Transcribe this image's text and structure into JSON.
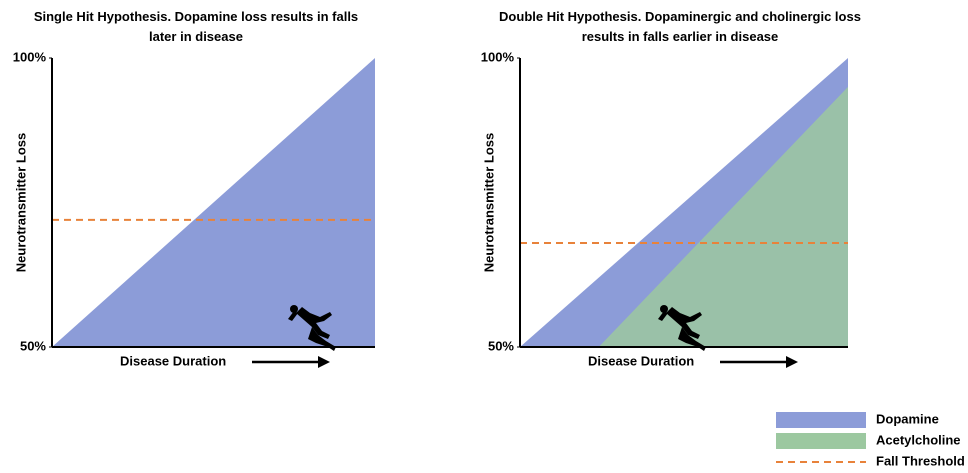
{
  "chart_data": [
    {
      "type": "area",
      "title": "Single Hit Hypothesis. Dopamine loss results in falls later in disease",
      "xlabel": "Disease Duration",
      "ylabel": "Neurotransmitter Loss",
      "x": [
        0,
        100
      ],
      "xlim": [
        0,
        100
      ],
      "ylim": [
        50,
        100
      ],
      "yticks": [
        {
          "value": 50,
          "label": "50%"
        },
        {
          "value": 100,
          "label": "100%"
        }
      ],
      "series": [
        {
          "kind": "area",
          "color": "#8c9cd8",
          "values": [
            50,
            100
          ]
        },
        {
          "kind": "dashed-line",
          "color": "#e8823a",
          "values": [
            72,
            72
          ]
        }
      ]
    },
    {
      "type": "area",
      "title": "Double Hit Hypothesis. Dopaminergic and cholinergic loss results in falls earlier in disease",
      "xlabel": "Disease Duration",
      "ylabel": "Neurotransmitter Loss",
      "x": [
        0,
        24,
        100
      ],
      "xlim": [
        0,
        100
      ],
      "ylim": [
        50,
        100
      ],
      "yticks": [
        {
          "value": 50,
          "label": "50%"
        },
        {
          "value": 100,
          "label": "100%"
        }
      ],
      "legend": "lower right",
      "series": [
        {
          "name": "Dopamine",
          "kind": "area",
          "color": "#8c9cd8",
          "values": [
            50,
            62,
            100
          ]
        },
        {
          "name": "Acetylcholine",
          "kind": "area",
          "color": "#9cc8a0",
          "values": [
            null,
            50,
            95
          ]
        },
        {
          "name": "Fall Threshold",
          "kind": "dashed-line",
          "color": "#e8823a",
          "values": [
            68,
            68,
            68
          ]
        }
      ]
    }
  ]
}
